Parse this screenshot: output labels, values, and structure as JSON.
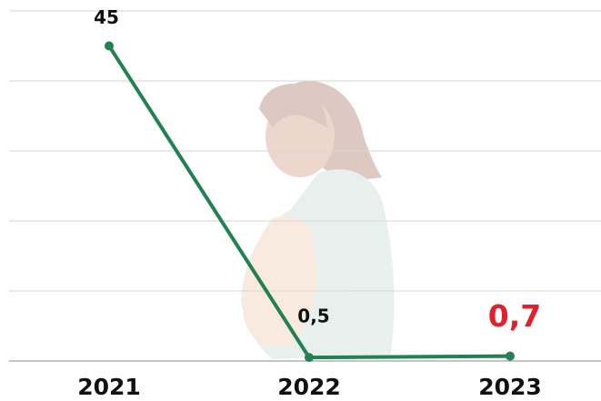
{
  "chart_data": {
    "type": "line",
    "categories": [
      "2021",
      "2022",
      "2023"
    ],
    "series": [
      {
        "color": "#228052",
        "values": [
          45,
          0.5,
          0.7
        ],
        "value_labels": [
          "45",
          "0,5",
          "0,7"
        ],
        "value_label_colors": [
          "#111111",
          "#111111",
          "#e0202a"
        ]
      }
    ],
    "ylim": [
      0,
      50
    ],
    "yticks": [
      0,
      10,
      20,
      30,
      40,
      50
    ],
    "grid": true
  }
}
